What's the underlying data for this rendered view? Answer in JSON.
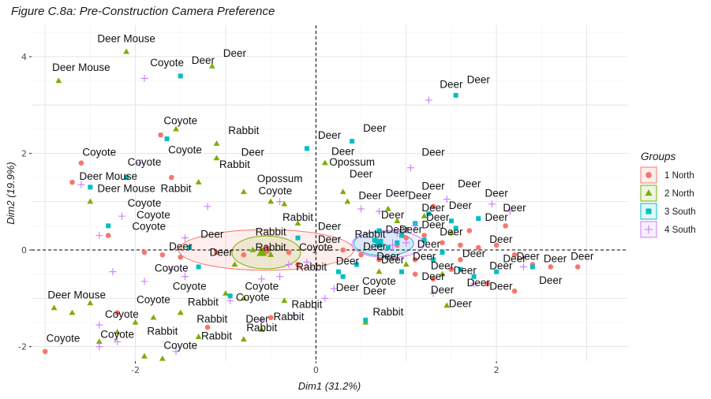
{
  "title": "Figure C.8a: Pre-Construction Camera Preference",
  "chart_data": {
    "type": "scatter",
    "xlabel": "Dim1 (31.2%)",
    "ylabel": "Dim2 (19.9%)",
    "xlim": [
      -3.15,
      3.45
    ],
    "ylim": [
      -2.3,
      4.65
    ],
    "xticks": [
      -2,
      0,
      2
    ],
    "yticks": [
      -2,
      0,
      2,
      4
    ],
    "grid": true,
    "reference_lines": {
      "x": 0,
      "y": 0
    },
    "legend": {
      "title": "Groups",
      "position": "right",
      "items": [
        {
          "label": "1 North",
          "color": "#F8766D",
          "shape": "circle"
        },
        {
          "label": "2 North",
          "color": "#7CAE00",
          "shape": "triangle"
        },
        {
          "label": "3 South",
          "color": "#00BFC4",
          "shape": "square"
        },
        {
          "label": "4 South",
          "color": "#C77CFF",
          "shape": "plus"
        }
      ]
    },
    "series": [
      {
        "name": "1 North",
        "points": [
          [
            -1.72,
            2.38
          ],
          [
            -2.6,
            1.8
          ],
          [
            -1.6,
            1.5
          ],
          [
            -2.7,
            1.4
          ],
          [
            -2.3,
            0.3
          ],
          [
            -1.9,
            -0.05
          ],
          [
            -1.7,
            -0.1
          ],
          [
            -1.5,
            -0.15
          ],
          [
            -1.1,
            -0.05
          ],
          [
            -0.8,
            -0.1
          ],
          [
            -0.3,
            -0.05
          ],
          [
            -0.2,
            -0.3
          ],
          [
            -3.0,
            -2.1
          ],
          [
            -2.2,
            -1.3
          ],
          [
            -1.2,
            -1.6
          ],
          [
            -0.5,
            -1.4
          ],
          [
            0.9,
            0.1
          ],
          [
            1.0,
            0.25
          ],
          [
            1.2,
            0.3
          ],
          [
            1.4,
            0.15
          ],
          [
            1.6,
            0.1
          ],
          [
            1.8,
            0.05
          ],
          [
            2.0,
            0.1
          ],
          [
            2.2,
            -0.1
          ],
          [
            2.4,
            -0.3
          ],
          [
            2.6,
            -0.35
          ],
          [
            2.9,
            -0.35
          ],
          [
            1.1,
            -0.5
          ],
          [
            1.3,
            -0.6
          ],
          [
            1.5,
            -0.4
          ],
          [
            1.9,
            -0.7
          ],
          [
            2.2,
            -0.85
          ],
          [
            1.7,
            0.4
          ],
          [
            2.1,
            0.5
          ],
          [
            1.3,
            0.9
          ],
          [
            0.7,
            -0.2
          ],
          [
            0.5,
            -0.1
          ],
          [
            0.3,
            0.0
          ],
          [
            1.1,
            -0.2
          ],
          [
            1.6,
            -0.2
          ]
        ]
      },
      {
        "name": "2 North",
        "points": [
          [
            -2.1,
            4.1
          ],
          [
            -2.85,
            3.5
          ],
          [
            -1.15,
            3.8
          ],
          [
            -1.55,
            2.5
          ],
          [
            -1.1,
            2.2
          ],
          [
            -1.1,
            1.9
          ],
          [
            -1.3,
            1.4
          ],
          [
            -0.8,
            1.2
          ],
          [
            -0.5,
            1.0
          ],
          [
            -0.35,
            0.95
          ],
          [
            0.1,
            1.8
          ],
          [
            0.3,
            1.2
          ],
          [
            0.35,
            1.0
          ],
          [
            -0.7,
            0.0
          ],
          [
            -0.6,
            -0.05
          ],
          [
            -0.5,
            -0.1
          ],
          [
            -0.9,
            -0.3
          ],
          [
            -1.0,
            -0.9
          ],
          [
            -0.8,
            -1.0
          ],
          [
            -1.5,
            -1.3
          ],
          [
            -1.8,
            -1.4
          ],
          [
            -2.0,
            -1.5
          ],
          [
            -2.2,
            -1.7
          ],
          [
            -2.4,
            -1.9
          ],
          [
            -1.9,
            -2.2
          ],
          [
            -1.7,
            -2.25
          ],
          [
            -1.3,
            -1.8
          ],
          [
            -0.8,
            -1.85
          ],
          [
            -0.6,
            -1.65
          ],
          [
            -2.9,
            -1.2
          ],
          [
            -2.7,
            -1.3
          ],
          [
            -2.5,
            -1.1
          ],
          [
            -2.5,
            1.0
          ],
          [
            0.8,
            0.85
          ],
          [
            0.9,
            0.6
          ],
          [
            1.2,
            0.7
          ],
          [
            1.5,
            0.35
          ],
          [
            0.7,
            -0.45
          ],
          [
            1.0,
            -0.3
          ],
          [
            1.4,
            -0.5
          ],
          [
            1.45,
            -1.15
          ],
          [
            0.55,
            -1.5
          ],
          [
            -0.35,
            -1.05
          ],
          [
            -0.2,
            0.55
          ]
        ]
      },
      {
        "name": "3 South",
        "points": [
          [
            -2.1,
            1.5
          ],
          [
            -1.65,
            2.3
          ],
          [
            -1.5,
            3.6
          ],
          [
            -2.5,
            1.3
          ],
          [
            -2.3,
            0.5
          ],
          [
            -1.4,
            0.05
          ],
          [
            -1.3,
            -0.35
          ],
          [
            -0.95,
            -0.95
          ],
          [
            -0.1,
            2.1
          ],
          [
            0.4,
            2.25
          ],
          [
            0.7,
            0.4
          ],
          [
            0.65,
            0.2
          ],
          [
            0.7,
            0.1
          ],
          [
            0.8,
            0.05
          ],
          [
            0.9,
            0.15
          ],
          [
            0.95,
            0.3
          ],
          [
            1.1,
            0.55
          ],
          [
            1.25,
            0.75
          ],
          [
            1.5,
            0.6
          ],
          [
            1.8,
            0.65
          ],
          [
            1.55,
            0.45
          ],
          [
            1.4,
            -0.05
          ],
          [
            1.2,
            0.2
          ],
          [
            0.95,
            -0.45
          ],
          [
            1.3,
            -0.2
          ],
          [
            1.6,
            -0.4
          ],
          [
            1.75,
            -0.55
          ],
          [
            2.0,
            -0.45
          ],
          [
            2.4,
            -0.35
          ],
          [
            0.3,
            -0.55
          ],
          [
            0.55,
            -1.45
          ],
          [
            0.25,
            -0.45
          ],
          [
            0.45,
            -0.3
          ],
          [
            -0.2,
            0.25
          ],
          [
            1.55,
            3.2
          ]
        ]
      },
      {
        "name": "4 South",
        "points": [
          [
            -1.9,
            3.55
          ],
          [
            1.25,
            3.1
          ],
          [
            1.05,
            1.7
          ],
          [
            -2.6,
            1.35
          ],
          [
            -1.95,
            1.8
          ],
          [
            -1.2,
            0.9
          ],
          [
            -0.4,
            1.0
          ],
          [
            -2.15,
            0.7
          ],
          [
            -2.4,
            0.3
          ],
          [
            -1.45,
            0.25
          ],
          [
            -1.6,
            -0.4
          ],
          [
            -2.25,
            -0.45
          ],
          [
            -1.9,
            -0.65
          ],
          [
            -1.45,
            -0.55
          ],
          [
            -0.6,
            -0.6
          ],
          [
            -0.4,
            -0.55
          ],
          [
            -0.95,
            -1.05
          ],
          [
            -0.25,
            -1.35
          ],
          [
            -0.6,
            -1.45
          ],
          [
            0.1,
            -1.0
          ],
          [
            0.2,
            -0.8
          ],
          [
            -0.1,
            -0.25
          ],
          [
            0.5,
            0.85
          ],
          [
            0.7,
            0.8
          ],
          [
            0.9,
            0.35
          ],
          [
            1.1,
            0.5
          ],
          [
            1.45,
            1.05
          ],
          [
            1.95,
            0.95
          ],
          [
            2.15,
            0.8
          ],
          [
            2.3,
            -0.35
          ],
          [
            1.75,
            -0.7
          ],
          [
            1.3,
            -0.9
          ],
          [
            -2.4,
            -1.55
          ],
          [
            -2.4,
            -2.0
          ],
          [
            -1.55,
            -2.1
          ],
          [
            -2.2,
            -1.9
          ],
          [
            -0.3,
            -0.3
          ],
          [
            1.0,
            0.15
          ]
        ]
      }
    ],
    "ellipses": [
      {
        "group": "1 North",
        "center": [
          -0.55,
          0.0
        ],
        "rx": 0.97,
        "ry": 0.42,
        "color": "#F8766D"
      },
      {
        "group": "2 North",
        "center": [
          -0.55,
          -0.05
        ],
        "rx": 0.38,
        "ry": 0.34,
        "color": "#7CAE00"
      },
      {
        "group": "3 South",
        "center": [
          0.75,
          0.13
        ],
        "rx": 0.33,
        "ry": 0.25,
        "color": "#00BFC4"
      },
      {
        "group": "4 South",
        "center": [
          0.8,
          0.12
        ],
        "rx": 0.4,
        "ry": 0.28,
        "color": "#C77CFF"
      }
    ],
    "centroids": [
      {
        "group": "1 North",
        "x": -0.55,
        "y": 0.0
      },
      {
        "group": "2 North",
        "x": -0.6,
        "y": -0.05
      },
      {
        "group": "3 South",
        "x": 0.7,
        "y": 0.15
      },
      {
        "group": "4 South",
        "x": 0.85,
        "y": 0.1
      }
    ],
    "labels": [
      {
        "text": "Deer Mouse",
        "x": -2.1,
        "y": 4.3
      },
      {
        "text": "Coyote",
        "x": -1.65,
        "y": 3.8
      },
      {
        "text": "Deer",
        "x": -1.25,
        "y": 3.85
      },
      {
        "text": "Deer",
        "x": -0.9,
        "y": 4.0
      },
      {
        "text": "Deer Mouse",
        "x": -2.6,
        "y": 3.7
      },
      {
        "text": "Deer",
        "x": 1.5,
        "y": 3.35
      },
      {
        "text": "Deer",
        "x": 1.8,
        "y": 3.45
      },
      {
        "text": "Coyote",
        "x": -1.5,
        "y": 2.6
      },
      {
        "text": "Rabbit",
        "x": -0.8,
        "y": 2.4
      },
      {
        "text": "Deer",
        "x": 0.15,
        "y": 2.3
      },
      {
        "text": "Deer",
        "x": 0.65,
        "y": 2.45
      },
      {
        "text": "Coyote",
        "x": -2.4,
        "y": 1.95
      },
      {
        "text": "Coyote",
        "x": -1.45,
        "y": 2.0
      },
      {
        "text": "Deer",
        "x": -0.7,
        "y": 1.95
      },
      {
        "text": "Deer",
        "x": 0.3,
        "y": 1.97
      },
      {
        "text": "Deer",
        "x": 1.3,
        "y": 1.95
      },
      {
        "text": "Coyote",
        "x": -1.9,
        "y": 1.75
      },
      {
        "text": "Rabbit",
        "x": -0.9,
        "y": 1.7
      },
      {
        "text": "Opossum",
        "x": 0.4,
        "y": 1.75
      },
      {
        "text": "Deer Mouse",
        "x": -2.3,
        "y": 1.45
      },
      {
        "text": "Opossum",
        "x": -0.4,
        "y": 1.4
      },
      {
        "text": "Deer",
        "x": 0.5,
        "y": 1.5
      },
      {
        "text": "Deer Mouse",
        "x": -2.1,
        "y": 1.2
      },
      {
        "text": "Rabbit",
        "x": -1.55,
        "y": 1.2
      },
      {
        "text": "Coyote",
        "x": -0.45,
        "y": 1.15
      },
      {
        "text": "Deer",
        "x": 1.3,
        "y": 1.25
      },
      {
        "text": "Deer",
        "x": 1.7,
        "y": 1.3
      },
      {
        "text": "Deer",
        "x": 2.0,
        "y": 1.1
      },
      {
        "text": "Deer",
        "x": 0.6,
        "y": 1.05
      },
      {
        "text": "Deer",
        "x": 0.9,
        "y": 1.1
      },
      {
        "text": "Deer",
        "x": 1.15,
        "y": 1.05
      },
      {
        "text": "Coyote",
        "x": -1.9,
        "y": 0.9
      },
      {
        "text": "Deer",
        "x": 2.2,
        "y": 0.8
      },
      {
        "text": "Deer",
        "x": 1.3,
        "y": 0.8
      },
      {
        "text": "Deer",
        "x": 1.6,
        "y": 0.85
      },
      {
        "text": "Coyote",
        "x": -1.8,
        "y": 0.65
      },
      {
        "text": "Deer",
        "x": 0.85,
        "y": 0.65
      },
      {
        "text": "Deer",
        "x": 1.35,
        "y": 0.6
      },
      {
        "text": "Deer",
        "x": 2.0,
        "y": 0.6
      },
      {
        "text": "Rabbit",
        "x": -0.2,
        "y": 0.6
      },
      {
        "text": "Coyote",
        "x": -1.85,
        "y": 0.42
      },
      {
        "text": "Deer",
        "x": 0.15,
        "y": 0.42
      },
      {
        "text": "Deer",
        "x": 1.3,
        "y": 0.45
      },
      {
        "text": "Deer",
        "x": 0.9,
        "y": 0.35
      },
      {
        "text": "Deer",
        "x": 1.05,
        "y": 0.35
      },
      {
        "text": "Deer",
        "x": 1.5,
        "y": 0.3
      },
      {
        "text": "Deer",
        "x": 2.05,
        "y": 0.15
      },
      {
        "text": "Deer",
        "x": -1.15,
        "y": 0.25
      },
      {
        "text": "Rabbit",
        "x": -0.5,
        "y": 0.3
      },
      {
        "text": "Rabbit",
        "x": 0.6,
        "y": 0.25
      },
      {
        "text": "Deer",
        "x": 0.15,
        "y": 0.15
      },
      {
        "text": "Deer",
        "x": 1.25,
        "y": 0.05
      },
      {
        "text": "Deer",
        "x": -1.5,
        "y": 0.0
      },
      {
        "text": "Deer",
        "x": 0.65,
        "y": 0.0
      },
      {
        "text": "Rabbit",
        "x": -0.5,
        "y": -0.02
      },
      {
        "text": "Coyote",
        "x": 0.0,
        "y": -0.02
      },
      {
        "text": "Deer",
        "x": -1.05,
        "y": -0.12
      },
      {
        "text": "Deer",
        "x": 0.8,
        "y": -0.2
      },
      {
        "text": "Deer",
        "x": 1.2,
        "y": -0.2
      },
      {
        "text": "Deer",
        "x": 1.75,
        "y": -0.15
      },
      {
        "text": "Deer",
        "x": 2.35,
        "y": -0.2
      },
      {
        "text": "Deer",
        "x": 2.65,
        "y": -0.25
      },
      {
        "text": "Deer",
        "x": 2.95,
        "y": -0.2
      },
      {
        "text": "Deer",
        "x": 0.35,
        "y": -0.3
      },
      {
        "text": "Deer",
        "x": 0.85,
        "y": -0.28
      },
      {
        "text": "Deer",
        "x": 1.4,
        "y": -0.4
      },
      {
        "text": "Deer",
        "x": 2.05,
        "y": -0.4
      },
      {
        "text": "Deer",
        "x": 2.2,
        "y": -0.25
      },
      {
        "text": "Deer",
        "x": 1.65,
        "y": -0.5
      },
      {
        "text": "Rabbit",
        "x": -0.05,
        "y": -0.42
      },
      {
        "text": "Coyote",
        "x": -1.6,
        "y": -0.45
      },
      {
        "text": "Deer",
        "x": 1.3,
        "y": -0.62
      },
      {
        "text": "Deer",
        "x": 1.8,
        "y": -0.75
      },
      {
        "text": "Deer",
        "x": 2.05,
        "y": -0.82
      },
      {
        "text": "Deer",
        "x": 2.6,
        "y": -0.7
      },
      {
        "text": "Coyote",
        "x": -1.4,
        "y": -0.82
      },
      {
        "text": "Coyote",
        "x": -0.6,
        "y": -0.82
      },
      {
        "text": "Coyote",
        "x": 0.7,
        "y": -0.72
      },
      {
        "text": "Deer",
        "x": 0.35,
        "y": -0.85
      },
      {
        "text": "Deer",
        "x": 0.65,
        "y": -0.92
      },
      {
        "text": "Deer",
        "x": 1.4,
        "y": -0.9
      },
      {
        "text": "Coyote",
        "x": -1.8,
        "y": -1.1
      },
      {
        "text": "Coyote",
        "x": -0.7,
        "y": -1.05
      },
      {
        "text": "Rabbit",
        "x": -1.25,
        "y": -1.15
      },
      {
        "text": "Rabbit",
        "x": -0.1,
        "y": -1.2
      },
      {
        "text": "Deer",
        "x": 1.6,
        "y": -1.18
      },
      {
        "text": "Deer Mouse",
        "x": -2.65,
        "y": -1.0
      },
      {
        "text": "Coyote",
        "x": -2.15,
        "y": -1.4
      },
      {
        "text": "Rabbit",
        "x": -1.15,
        "y": -1.5
      },
      {
        "text": "Deer",
        "x": -0.65,
        "y": -1.5
      },
      {
        "text": "Rabbit",
        "x": -0.3,
        "y": -1.45
      },
      {
        "text": "Rabbit",
        "x": 0.8,
        "y": -1.35
      },
      {
        "text": "Rabbit",
        "x": -0.6,
        "y": -1.68
      },
      {
        "text": "Coyote",
        "x": -2.2,
        "y": -1.82
      },
      {
        "text": "Rabbit",
        "x": -1.7,
        "y": -1.75
      },
      {
        "text": "Rabbit",
        "x": -1.1,
        "y": -1.85
      },
      {
        "text": "Coyote",
        "x": -2.8,
        "y": -1.9
      },
      {
        "text": "Coyote",
        "x": -1.5,
        "y": -2.05
      }
    ]
  }
}
